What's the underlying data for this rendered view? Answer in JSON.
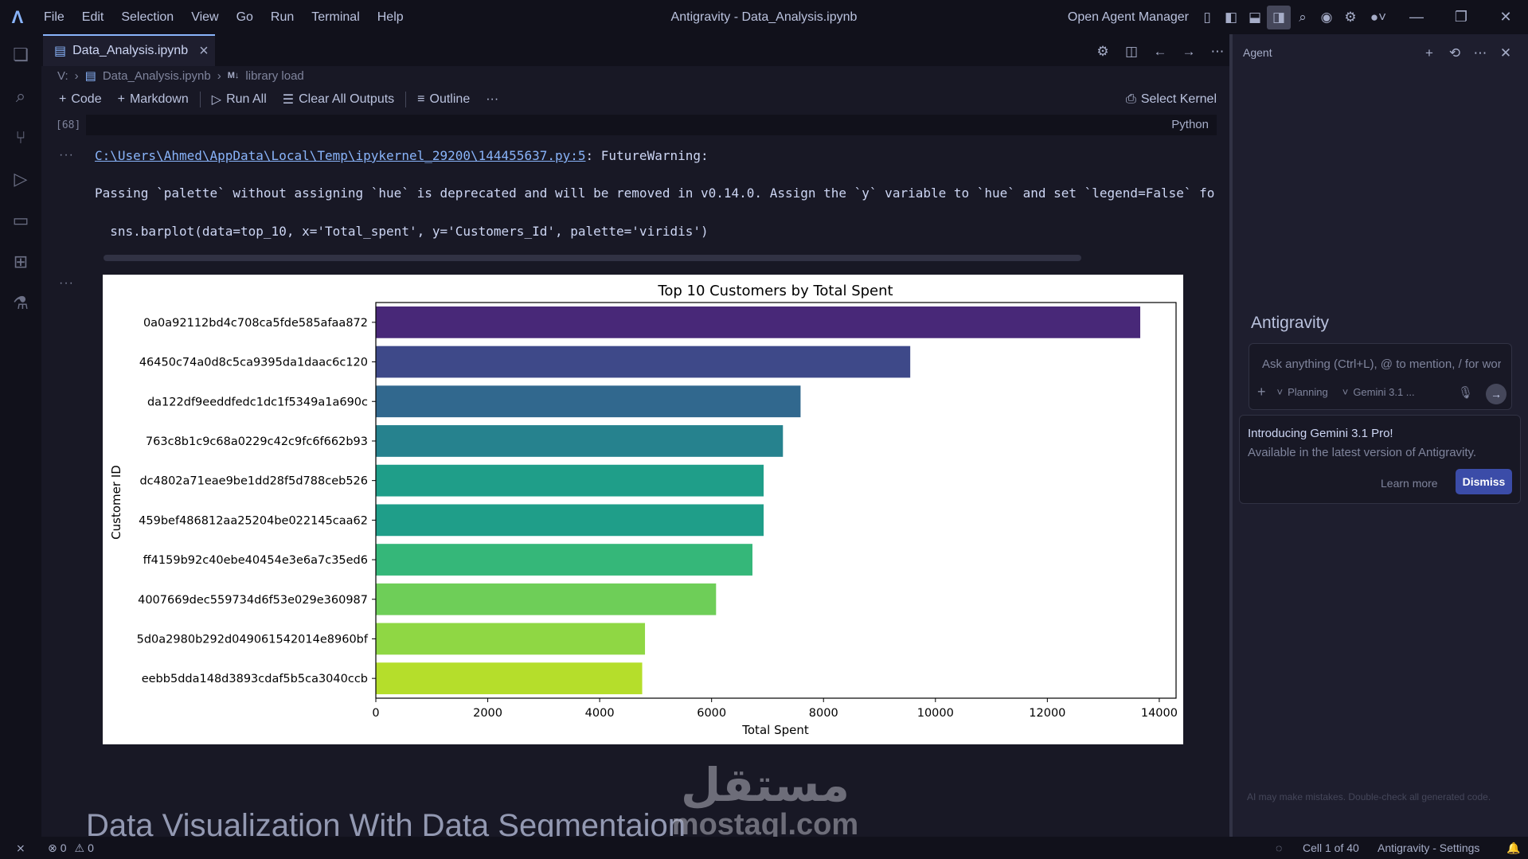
{
  "titlebar": {
    "menus": [
      "File",
      "Edit",
      "Selection",
      "View",
      "Go",
      "Run",
      "Terminal",
      "Help"
    ],
    "window_title": "Antigravity - Data_Analysis.ipynb",
    "open_agent_manager": "Open Agent Manager"
  },
  "tab": {
    "label": "Data_Analysis.ipynb",
    "close": "×"
  },
  "breadcrumb": {
    "drive": "V:",
    "file": "Data_Analysis.ipynb",
    "md_badge": "M↓",
    "section": "library load"
  },
  "toolbar": {
    "code": "Code",
    "markdown": "Markdown",
    "run_all": "Run All",
    "clear_outputs": "Clear All Outputs",
    "outline": "Outline",
    "more": "···",
    "select_kernel": "Select Kernel"
  },
  "cell": {
    "exec_count": "[68]",
    "language": "Python",
    "output_ellipsis": "···",
    "warning_path": "C:\\Users\\Ahmed\\AppData\\Local\\Temp\\ipykernel_29200\\144455637.py:5",
    "warning_type": ": FutureWarning:",
    "warning_msg": "Passing `palette` without assigning `hue` is deprecated and will be removed in v0.14.0. Assign the `y` variable to `hue` and set `legend=False` for",
    "code_line": "  sns.barplot(data=top_10, x='Total_spent', y='Customers_Id', palette='viridis')"
  },
  "chart_data": {
    "type": "bar",
    "orientation": "horizontal",
    "title": "Top 10 Customers by Total Spent",
    "xlabel": "Total Spent",
    "ylabel": "Customer ID",
    "xlim": [
      0,
      14300
    ],
    "xticks": [
      0,
      2000,
      4000,
      6000,
      8000,
      10000,
      12000,
      14000
    ],
    "categories": [
      "0a0a92112bd4c708ca5fde585afaa872",
      "46450c74a0d8c5ca9395da1daac6c120",
      "da122df9eeddfedc1dc1f5349a1a690c",
      "763c8b1c9c68a0229c42c9fc6f662b93",
      "dc4802a71eae9be1dd28f5d788ceb526",
      "459bef486812aa25204be022145caa62",
      "ff4159b92c40ebe40454e3e6a7c35ed6",
      "4007669dec559734d6f53e029e360987",
      "5d0a2980b292d049061542014e8960bf",
      "eebb5dda148d3893cdaf5b5ca3040ccb"
    ],
    "values": [
      13660,
      9550,
      7590,
      7275,
      6930,
      6930,
      6730,
      6080,
      4810,
      4760
    ],
    "colors": [
      "#482878",
      "#3e4989",
      "#31688e",
      "#26828e",
      "#1f9e89",
      "#1f9e89",
      "#35b779",
      "#6ece58",
      "#8fd744",
      "#b5de2b"
    ],
    "grid": false,
    "legend": "none"
  },
  "below_heading": "Data Visualization With Data Segmentaion",
  "watermark": {
    "arabic": "مستقل",
    "latin": "mostaql.com"
  },
  "agent": {
    "header": "Agent",
    "brand": "Antigravity",
    "input_placeholder": "Ask anything (Ctrl+L), @ to mention, / for workflows",
    "plus": "+",
    "mode": "Planning",
    "model": "Gemini 3.1 ...",
    "popup_title": "Introducing Gemini 3.1 Pro!",
    "popup_sub": "Available in the latest version of Antigravity.",
    "learn_more": "Learn more",
    "dismiss": "Dismiss",
    "disclaimer": "AI may make mistakes. Double-check all generated code."
  },
  "statusbar": {
    "errors": "0",
    "warnings": "0",
    "cell_pos": "Cell 1 of 40",
    "settings": "Antigravity - Settings"
  }
}
